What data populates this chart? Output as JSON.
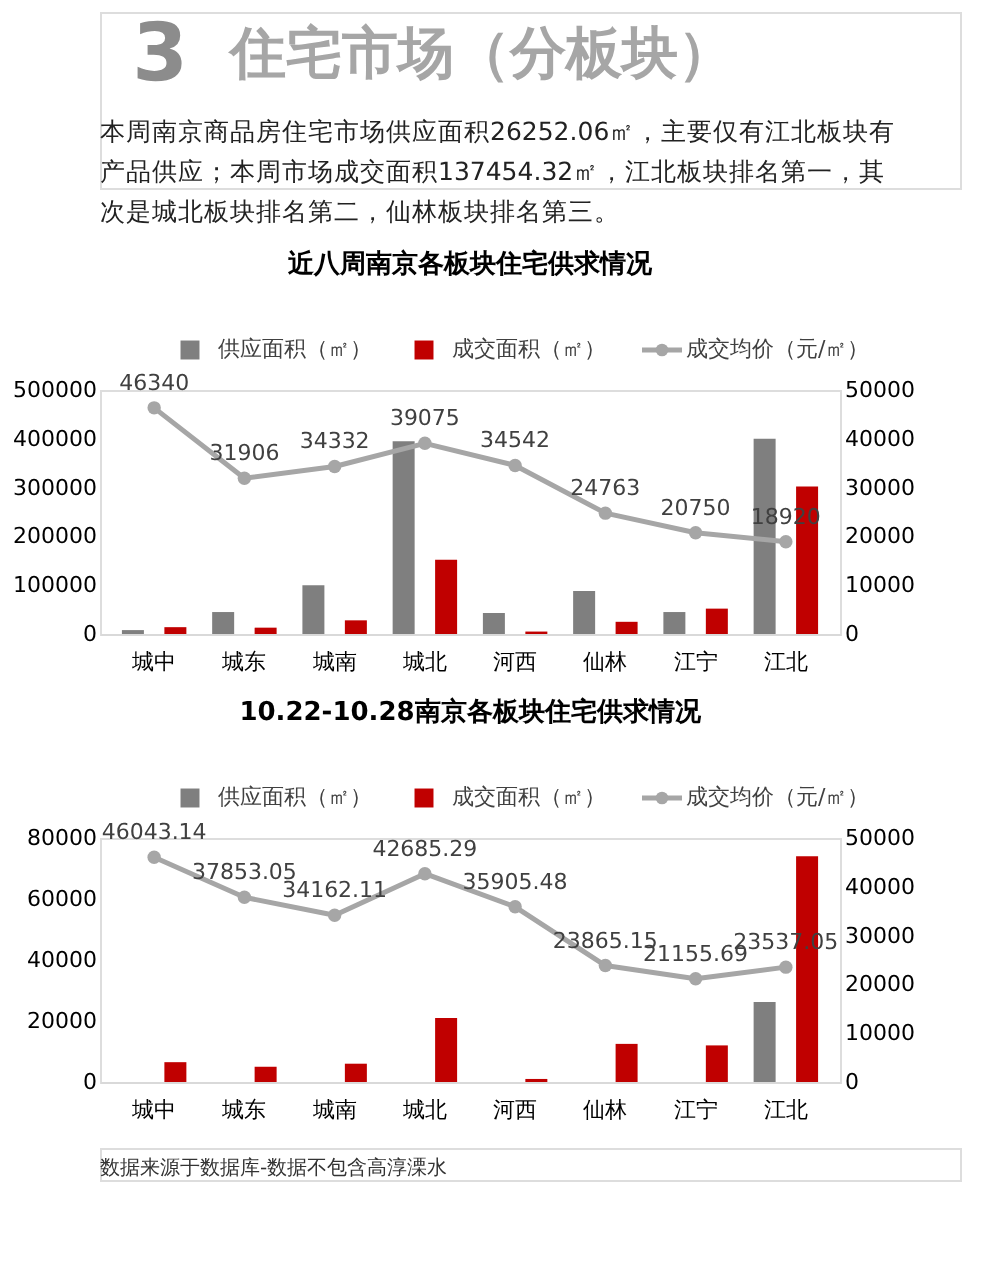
{
  "chart_data": [
    {
      "type": "bar",
      "title": "近八周南京各板块住宅供求情况",
      "annotations": [
        "3",
        "住宅市场（分板块）",
        "本周南京商品房住宅市场供应面积26252.06㎡，主要仅有江北板块有产品供应；本周市场成交面积137454.32㎡，江北板块排名第一，其次是城北板块排名第二，仙林板块排名第三。"
      ],
      "categories": [
        "城中",
        "城东",
        "城南",
        "城北",
        "河西",
        "仙林",
        "江宁",
        "江北"
      ],
      "ylim": [
        0,
        500000
      ],
      "yticks": [
        0,
        100000,
        200000,
        300000,
        400000,
        500000
      ],
      "y2lim": [
        0,
        50000
      ],
      "y2ticks": [
        0,
        10000,
        20000,
        30000,
        40000,
        50000
      ],
      "legend": "top",
      "grid": false,
      "series": [
        {
          "name": "供应面积（㎡）",
          "color": "#7f7f7f",
          "values": [
            8000,
            45000,
            100000,
            395000,
            43000,
            88000,
            45000,
            400000
          ]
        },
        {
          "name": "成交面积（㎡）",
          "color": "#c00000",
          "values": [
            14000,
            13000,
            28000,
            152000,
            5000,
            25000,
            52000,
            302000
          ]
        },
        {
          "name": "成交均价（元/㎡）",
          "type": "line",
          "axis": "y2",
          "color": "#a6a6a6",
          "marker": "circle",
          "values": [
            46340,
            31906,
            34332,
            39075,
            34542,
            24763,
            20750,
            18920
          ],
          "value_labels": [
            "46340",
            "31906",
            "34332",
            "39075",
            "34542",
            "24763",
            "20750",
            "18920"
          ]
        }
      ]
    },
    {
      "type": "bar",
      "title": "10.22-10.28南京各板块住宅供求情况",
      "annotations": [
        "数据来源于数据库-数据不包含高淳溧水"
      ],
      "categories": [
        "城中",
        "城东",
        "城南",
        "城北",
        "河西",
        "仙林",
        "江宁",
        "江北"
      ],
      "ylim": [
        0,
        80000
      ],
      "yticks": [
        0,
        20000,
        40000,
        60000,
        80000
      ],
      "y2lim": [
        0,
        50000
      ],
      "y2ticks": [
        0,
        10000,
        20000,
        30000,
        40000,
        50000
      ],
      "legend": "top",
      "grid": false,
      "series": [
        {
          "name": "供应面积（㎡）",
          "color": "#7f7f7f",
          "values": [
            null,
            null,
            null,
            null,
            null,
            null,
            null,
            26252
          ]
        },
        {
          "name": "成交面积（㎡）",
          "color": "#c00000",
          "values": [
            6500,
            5000,
            6000,
            21000,
            1000,
            12500,
            12000,
            74000
          ]
        },
        {
          "name": "成交均价（元/㎡）",
          "type": "line",
          "axis": "y2",
          "color": "#a6a6a6",
          "marker": "circle",
          "values": [
            46043.14,
            37853.05,
            34162.11,
            42685.29,
            35905.48,
            23865.15,
            21155.69,
            23537.05
          ],
          "value_labels": [
            "46043.14",
            "37853.05",
            "34162.11",
            "42685.29",
            "35905.48",
            "23865.15",
            "21155.69",
            "23537.05"
          ]
        }
      ]
    }
  ]
}
